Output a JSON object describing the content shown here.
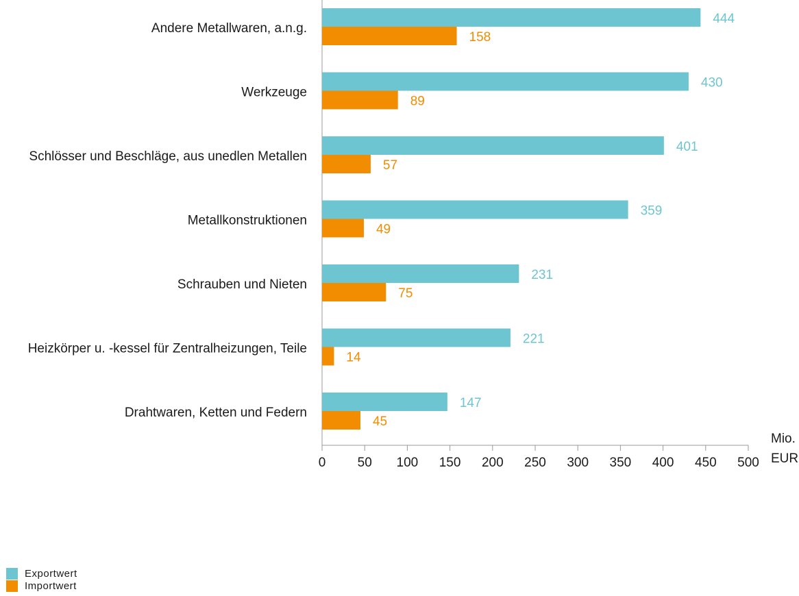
{
  "chart_data": {
    "type": "bar",
    "orientation": "horizontal",
    "categories": [
      "Andere Metallwaren, a.n.g.",
      "Werkzeuge",
      "Schlösser und Beschläge, aus unedlen Metallen",
      "Metallkonstruktionen",
      "Schrauben und Nieten",
      "Heizkörper u. -kessel für Zentralheizungen, Teile",
      "Drahtwaren, Ketten und Federn"
    ],
    "series": [
      {
        "name": "Exportwert",
        "color": "#6cc5d1",
        "values": [
          444,
          430,
          401,
          359,
          231,
          221,
          147
        ]
      },
      {
        "name": "Importwert",
        "color": "#f28c00",
        "values": [
          158,
          89,
          57,
          49,
          75,
          14,
          45
        ]
      }
    ],
    "xlim": [
      0,
      500
    ],
    "xticks": [
      0,
      50,
      100,
      150,
      200,
      250,
      300,
      350,
      400,
      450,
      500
    ],
    "xticks_text": [
      "0",
      "50",
      "100",
      "150",
      "200",
      "250",
      "300",
      "350",
      "400",
      "450",
      "500"
    ],
    "unit_label": [
      "Mio.",
      "EUR"
    ],
    "legend_position": "bottom-left",
    "grid": false
  }
}
